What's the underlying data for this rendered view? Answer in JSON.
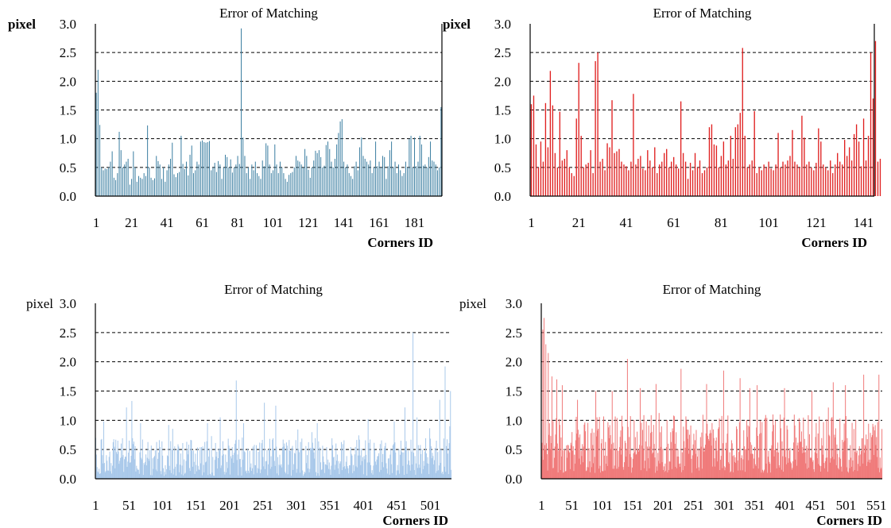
{
  "chart_data": [
    {
      "type": "bar",
      "title": "Error of Matching",
      "ylabel": "pixel",
      "xlabel": "Corners ID",
      "ylim": [
        0,
        3.0
      ],
      "yticks": [
        "0.0",
        "0.5",
        "1.0",
        "1.5",
        "2.0",
        "2.5",
        "3.0"
      ],
      "xticks": [
        "1",
        "21",
        "41",
        "61",
        "81",
        "101",
        "121",
        "141",
        "161",
        "181"
      ],
      "x_range": [
        1,
        196
      ],
      "bar_color": "#3b7ea1",
      "bold_labels": true,
      "gridlines": "dashed at 0.5, 1.0, 1.5, 2.0, 2.5",
      "count": 196,
      "values": [
        1.8,
        2.2,
        1.24,
        0.5,
        0.45,
        0.48,
        0.47,
        0.5,
        0.6,
        0.78,
        0.32,
        0.28,
        0.4,
        1.12,
        0.8,
        0.5,
        0.55,
        0.6,
        0.65,
        0.2,
        0.3,
        0.78,
        0.5,
        0.25,
        0.35,
        0.32,
        0.3,
        0.4,
        0.35,
        1.23,
        0.5,
        0.32,
        0.28,
        0.31,
        0.7,
        0.61,
        0.55,
        0.3,
        0.5,
        0.25,
        0.45,
        0.55,
        0.65,
        0.93,
        0.38,
        0.33,
        0.4,
        0.42,
        1.05,
        0.56,
        0.47,
        0.6,
        0.36,
        0.72,
        0.88,
        0.4,
        0.45,
        0.6,
        0.55,
        0.95,
        0.97,
        0.94,
        0.93,
        0.94,
        0.96,
        0.45,
        0.5,
        0.58,
        0.42,
        0.61,
        0.55,
        0.3,
        0.5,
        0.72,
        0.68,
        0.5,
        0.64,
        0.41,
        0.5,
        0.55,
        0.7,
        0.56,
        2.92,
        1.02,
        0.7,
        0.4,
        0.5,
        0.3,
        0.55,
        0.45,
        0.6,
        0.4,
        0.35,
        0.3,
        0.62,
        0.52,
        0.92,
        0.88,
        0.55,
        0.4,
        0.45,
        0.9,
        0.55,
        0.4,
        0.6,
        0.5,
        0.4,
        0.3,
        0.25,
        0.37,
        0.4,
        0.42,
        0.5,
        0.7,
        0.62,
        0.6,
        0.55,
        0.5,
        0.82,
        0.7,
        0.46,
        0.32,
        0.5,
        0.62,
        0.79,
        0.75,
        0.8,
        0.68,
        0.5,
        0.53,
        0.89,
        0.95,
        0.82,
        0.6,
        0.5,
        0.65,
        0.9,
        1.1,
        1.3,
        1.34,
        0.6,
        0.5,
        0.55,
        0.4,
        0.35,
        0.3,
        0.52,
        0.6,
        0.45,
        0.85,
        1.02,
        0.7,
        0.65,
        0.6,
        0.55,
        0.62,
        0.4,
        0.5,
        0.95,
        0.52,
        0.6,
        0.5,
        0.7,
        0.68,
        0.3,
        0.52,
        0.8,
        0.95,
        0.5,
        0.6,
        0.4,
        0.55,
        0.45,
        0.35,
        0.4,
        0.6,
        0.5,
        1.0,
        1.05,
        0.5,
        1.02,
        0.52,
        0.6,
        1.05,
        0.9,
        0.53,
        0.55,
        0.5,
        0.68,
        0.95,
        0.62,
        0.6,
        0.55,
        0.45,
        0.5,
        1.55
      ]
    },
    {
      "type": "bar",
      "title": "Error of Matching",
      "ylabel": "pixel",
      "xlabel": "Corners ID",
      "ylim": [
        0,
        3.0
      ],
      "yticks": [
        "0.0",
        "0.5",
        "1.0",
        "1.5",
        "2.0",
        "2.5",
        "3.0"
      ],
      "xticks": [
        "1",
        "21",
        "41",
        "61",
        "81",
        "101",
        "121",
        "141"
      ],
      "x_range": [
        1,
        145
      ],
      "bar_color": "#e02020",
      "bold_labels": true,
      "gridlines": "dashed at 0.5, 1.0, 1.5, 2.0, 2.5",
      "count": 145,
      "values": [
        1.6,
        1.75,
        0.9,
        0.5,
        0.95,
        0.6,
        1.62,
        0.85,
        2.18,
        1.58,
        0.75,
        0.5,
        1.47,
        0.62,
        0.65,
        0.8,
        0.5,
        0.4,
        0.35,
        1.35,
        2.32,
        1.05,
        0.5,
        0.55,
        0.58,
        0.8,
        0.4,
        2.35,
        2.5,
        0.6,
        0.65,
        0.45,
        0.92,
        0.85,
        1.67,
        0.75,
        0.78,
        0.82,
        0.6,
        0.55,
        0.52,
        0.45,
        0.6,
        1.78,
        0.55,
        0.65,
        0.7,
        0.48,
        0.45,
        0.8,
        0.62,
        0.5,
        0.85,
        0.4,
        0.55,
        0.6,
        0.75,
        0.82,
        0.5,
        0.6,
        0.68,
        0.55,
        0.48,
        1.65,
        0.75,
        0.6,
        0.3,
        0.58,
        0.45,
        0.75,
        0.5,
        0.62,
        0.4,
        0.45,
        0.5,
        1.2,
        1.25,
        0.9,
        0.88,
        0.5,
        0.7,
        0.95,
        0.55,
        0.62,
        1.05,
        0.65,
        1.2,
        1.25,
        1.45,
        2.58,
        1.05,
        0.5,
        0.55,
        0.62,
        1.48,
        0.4,
        0.5,
        0.45,
        0.55,
        0.5,
        0.6,
        0.48,
        0.45,
        0.55,
        1.1,
        0.5,
        0.6,
        0.55,
        0.62,
        0.7,
        1.15,
        0.6,
        0.55,
        0.5,
        1.4,
        1.02,
        0.55,
        0.6,
        0.5,
        0.45,
        0.58,
        1.18,
        0.95,
        0.55,
        0.5,
        0.45,
        0.62,
        0.4,
        0.55,
        0.75,
        0.6,
        0.55,
        0.98,
        0.7,
        0.85,
        0.62,
        1.08,
        1.25,
        0.95,
        0.52,
        1.35,
        0.62,
        1.05,
        2.5,
        1.7,
        2.7,
        0.6,
        0.65
      ]
    },
    {
      "type": "bar",
      "title": "Error of Matching",
      "ylabel": "pixel",
      "xlabel": "Corners ID",
      "ylim": [
        0,
        3.0
      ],
      "yticks": [
        "0.0",
        "0.5",
        "1.0",
        "1.5",
        "2.0",
        "2.5",
        "3.0"
      ],
      "xticks": [
        "1",
        "51",
        "101",
        "151",
        "201",
        "251",
        "301",
        "351",
        "401",
        "451",
        "501"
      ],
      "x_range": [
        1,
        532
      ],
      "bar_color": "#a8c8ea",
      "bold_labels": false,
      "gridlines": "dashed at 0.5, 1.0, 1.5, 2.0, 2.5",
      "count": 532,
      "peaks": [
        [
          13,
          0.98
        ],
        [
          47,
          1.22
        ],
        [
          55,
          1.33
        ],
        [
          68,
          0.95
        ],
        [
          110,
          0.92
        ],
        [
          168,
          0.95
        ],
        [
          187,
          1.05
        ],
        [
          211,
          1.68
        ],
        [
          222,
          0.95
        ],
        [
          253,
          1.3
        ],
        [
          270,
          1.25
        ],
        [
          332,
          0.95
        ],
        [
          408,
          1.02
        ],
        [
          447,
          0.98
        ],
        [
          463,
          1.22
        ],
        [
          475,
          2.5
        ],
        [
          481,
          1.05
        ],
        [
          515,
          1.35
        ],
        [
          523,
          1.92
        ],
        [
          531,
          1.5
        ]
      ],
      "noise": {
        "base": 0.05,
        "amplitude": 0.65
      },
      "note": "bars vary roughly 0.05–0.7 px with isolated peaks listed"
    },
    {
      "type": "bar",
      "title": "Error of Matching",
      "ylabel": "pixel",
      "xlabel": "Corners ID",
      "ylim": [
        0,
        3.0
      ],
      "yticks": [
        "0.0",
        "0.5",
        "1.0",
        "1.5",
        "2.0",
        "2.5",
        "3.0"
      ],
      "xticks": [
        "1",
        "51",
        "101",
        "151",
        "201",
        "251",
        "301",
        "351",
        "401",
        "451",
        "501",
        "551"
      ],
      "x_range": [
        1,
        560
      ],
      "bar_color": "#f07a7a",
      "bold_labels": false,
      "gridlines": "dashed at 0.5, 1.0, 1.5, 2.0, 2.5",
      "count": 560,
      "peaks": [
        [
          3,
          2.55
        ],
        [
          5,
          2.75
        ],
        [
          8,
          2.3
        ],
        [
          12,
          2.15
        ],
        [
          18,
          1.75
        ],
        [
          26,
          1.7
        ],
        [
          35,
          1.6
        ],
        [
          60,
          1.35
        ],
        [
          90,
          1.5
        ],
        [
          117,
          1.5
        ],
        [
          142,
          2.05
        ],
        [
          163,
          1.55
        ],
        [
          189,
          1.62
        ],
        [
          230,
          1.88
        ],
        [
          272,
          1.62
        ],
        [
          300,
          1.85
        ],
        [
          327,
          1.72
        ],
        [
          343,
          1.55
        ],
        [
          355,
          1.6
        ],
        [
          400,
          1.55
        ],
        [
          445,
          1.5
        ],
        [
          480,
          1.65
        ],
        [
          500,
          1.6
        ],
        [
          530,
          1.78
        ],
        [
          555,
          1.78
        ]
      ],
      "noise": {
        "base": 0.1,
        "amplitude": 1.0
      },
      "note": "dense bars mostly 0.1–1.1 px with isolated peaks listed"
    }
  ]
}
